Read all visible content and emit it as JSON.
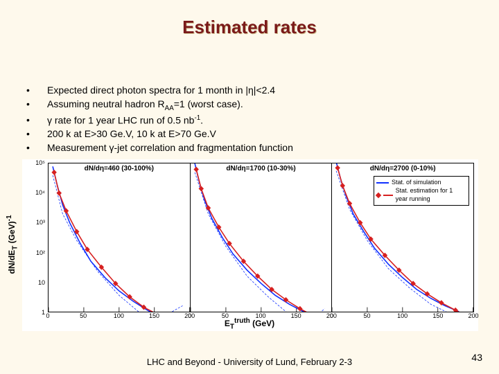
{
  "title": "Estimated rates",
  "bullets": [
    "Expected direct photon spectra for 1 month in  |η|<2.4",
    "Assuming neutral hadron R<sub>AA</sub>=1 (worst case).",
    "γ rate for 1 year LHC run of 0.5 nb<sup>-1</sup>.",
    "200 k at E>30 Ge.V, 10 k at E>70 Ge.V",
    "Measurement γ-jet correlation and fragmentation function"
  ],
  "chart": {
    "type": "line-scatter",
    "background_color": "#ffffff",
    "ylabel": "dN/dE<sub>T</sub> (GeV)<sup>-1</sup>",
    "xlabel": "E<sub>T</sub><sup>truth</sup> (GeV)",
    "yscale": "log",
    "ylim": [
      1,
      100000.0
    ],
    "yticks": [
      {
        "pos": 0.0,
        "label": "10⁵"
      },
      {
        "pos": 0.2,
        "label": "10⁴"
      },
      {
        "pos": 0.4,
        "label": "10³"
      },
      {
        "pos": 0.6,
        "label": "10²"
      },
      {
        "pos": 0.8,
        "label": "10"
      },
      {
        "pos": 1.0,
        "label": "1"
      }
    ],
    "xlim": [
      0,
      200
    ],
    "xticks": [
      0,
      50,
      100,
      150,
      200
    ],
    "line_colors": {
      "sim": "#1030ff",
      "est": "#d62020"
    },
    "marker_color": "#d62020",
    "marker_style": "diamond",
    "line_width": 1.6,
    "dash_color": "#1030ff",
    "legend": {
      "panel": 2,
      "items": [
        {
          "color": "#1030ff",
          "label": "Stat. of simulation",
          "style": "line"
        },
        {
          "color": "#d62020",
          "label": "Stat. estimation for 1 year running",
          "style": "marker-line"
        }
      ]
    },
    "panels": [
      {
        "title": "dN/dη=460 (30-100%)",
        "sim": [
          [
            6,
            4.9
          ],
          [
            12,
            4.3
          ],
          [
            20,
            3.6
          ],
          [
            30,
            3.0
          ],
          [
            45,
            2.3
          ],
          [
            60,
            1.7
          ],
          [
            80,
            1.15
          ],
          [
            100,
            0.7
          ],
          [
            120,
            0.35
          ],
          [
            140,
            0.05
          ],
          [
            160,
            -0.2
          ]
        ],
        "est": [
          [
            8,
            4.7
          ],
          [
            15,
            4.0
          ],
          [
            25,
            3.4
          ],
          [
            40,
            2.7
          ],
          [
            55,
            2.1
          ],
          [
            75,
            1.5
          ],
          [
            95,
            0.95
          ],
          [
            115,
            0.5
          ],
          [
            135,
            0.15
          ],
          [
            155,
            -0.1
          ],
          [
            175,
            -0.3
          ]
        ],
        "dash": [
          [
            6,
            4.6
          ],
          [
            20,
            3.3
          ],
          [
            40,
            2.4
          ],
          [
            70,
            1.35
          ],
          [
            100,
            0.55
          ],
          [
            130,
            -0.05
          ],
          [
            160,
            -0.2
          ],
          [
            190,
            0.2
          ]
        ]
      },
      {
        "title": "dN/dη=1700 (10-30%)",
        "sim": [
          [
            6,
            5.0
          ],
          [
            12,
            4.4
          ],
          [
            20,
            3.75
          ],
          [
            30,
            3.15
          ],
          [
            45,
            2.5
          ],
          [
            60,
            1.95
          ],
          [
            80,
            1.4
          ],
          [
            100,
            0.95
          ],
          [
            120,
            0.55
          ],
          [
            140,
            0.25
          ],
          [
            160,
            0.0
          ],
          [
            180,
            -0.2
          ]
        ],
        "est": [
          [
            8,
            4.8
          ],
          [
            15,
            4.15
          ],
          [
            25,
            3.5
          ],
          [
            40,
            2.85
          ],
          [
            55,
            2.3
          ],
          [
            75,
            1.7
          ],
          [
            95,
            1.2
          ],
          [
            115,
            0.75
          ],
          [
            135,
            0.4
          ],
          [
            155,
            0.1
          ],
          [
            175,
            -0.15
          ]
        ],
        "dash": [
          [
            6,
            4.7
          ],
          [
            25,
            3.3
          ],
          [
            50,
            2.2
          ],
          [
            80,
            1.2
          ],
          [
            110,
            0.5
          ],
          [
            140,
            -0.1
          ],
          [
            170,
            -0.3
          ],
          [
            190,
            0.1
          ]
        ]
      },
      {
        "title": "dN/dη=2700 (0-10%)",
        "sim": [
          [
            6,
            5.05
          ],
          [
            12,
            4.5
          ],
          [
            20,
            3.9
          ],
          [
            30,
            3.3
          ],
          [
            45,
            2.7
          ],
          [
            60,
            2.15
          ],
          [
            80,
            1.6
          ],
          [
            100,
            1.15
          ],
          [
            120,
            0.75
          ],
          [
            140,
            0.45
          ],
          [
            160,
            0.2
          ],
          [
            180,
            0.0
          ]
        ],
        "est": [
          [
            8,
            4.85
          ],
          [
            15,
            4.25
          ],
          [
            25,
            3.65
          ],
          [
            40,
            3.0
          ],
          [
            55,
            2.45
          ],
          [
            75,
            1.9
          ],
          [
            95,
            1.4
          ],
          [
            115,
            0.95
          ],
          [
            135,
            0.6
          ],
          [
            155,
            0.3
          ],
          [
            175,
            0.05
          ],
          [
            190,
            -0.15
          ]
        ],
        "dash": [
          [
            6,
            4.75
          ],
          [
            25,
            3.45
          ],
          [
            50,
            2.4
          ],
          [
            80,
            1.45
          ],
          [
            110,
            0.8
          ],
          [
            140,
            0.25
          ],
          [
            170,
            -0.1
          ],
          [
            195,
            -0.25
          ]
        ]
      }
    ]
  },
  "footer": "LHC and Beyond - University of Lund, February 2-3",
  "page_number": "43"
}
